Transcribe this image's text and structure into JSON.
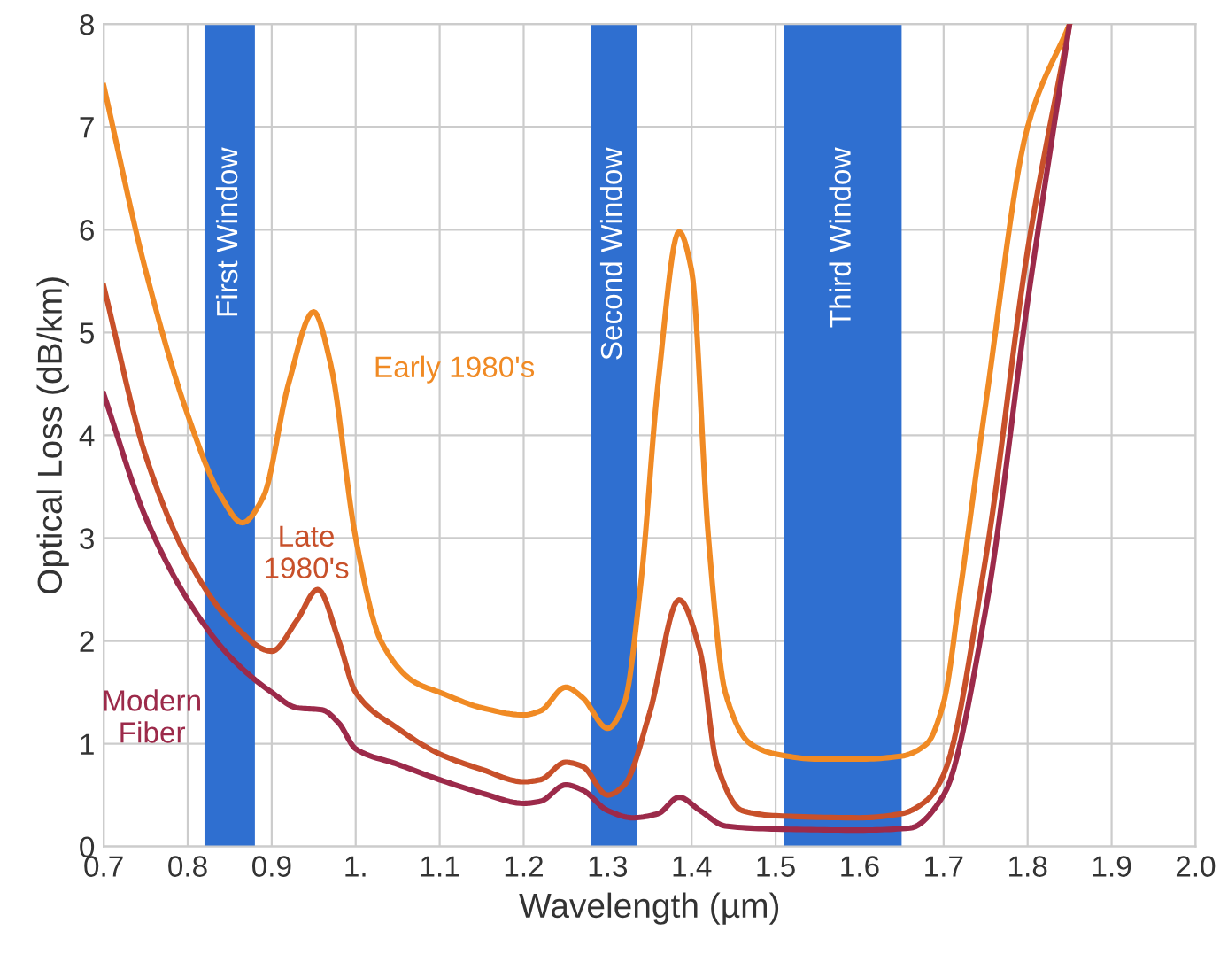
{
  "chart_data": {
    "type": "line",
    "xlabel": "Wavelength (µm)",
    "ylabel": "Optical Loss (dB/km)",
    "xlim": [
      0.7,
      2.0
    ],
    "ylim": [
      0,
      8
    ],
    "xticks": [
      0.7,
      0.8,
      0.9,
      {
        "value": 1.0,
        "label": "1."
      },
      1.1,
      1.2,
      1.3,
      1.4,
      1.5,
      1.6,
      1.7,
      1.8,
      1.9,
      {
        "value": 2.0,
        "label": "2.0"
      }
    ],
    "yticks": [
      0,
      1,
      2,
      3,
      4,
      5,
      6,
      7,
      8
    ],
    "grid": true,
    "line_style": "solid",
    "marker": "none",
    "bands": [
      {
        "axis": "x",
        "from": 0.82,
        "to": 0.88,
        "label": "First Window",
        "color": "#2f6fd0"
      },
      {
        "axis": "x",
        "from": 1.28,
        "to": 1.335,
        "label": "Second Window",
        "color": "#2f6fd0"
      },
      {
        "axis": "x",
        "from": 1.51,
        "to": 1.65,
        "label": "Third Window",
        "color": "#2f6fd0"
      }
    ],
    "series": [
      {
        "name": "Early 1980's",
        "color": "#f08a24",
        "x": [
          0.7,
          0.75,
          0.8,
          0.84,
          0.865,
          0.89,
          0.92,
          0.95,
          0.97,
          1.0,
          1.03,
          1.07,
          1.1,
          1.15,
          1.2,
          1.22,
          1.25,
          1.27,
          1.3,
          1.32,
          1.34,
          1.36,
          1.385,
          1.4,
          1.42,
          1.44,
          1.47,
          1.5,
          1.55,
          1.6,
          1.65,
          1.68,
          1.7,
          1.72,
          1.75,
          1.8,
          1.85
        ],
        "values": [
          7.4,
          5.6,
          4.2,
          3.4,
          3.15,
          3.4,
          4.5,
          5.2,
          4.7,
          3.0,
          2.0,
          1.6,
          1.5,
          1.35,
          1.28,
          1.32,
          1.55,
          1.45,
          1.15,
          1.4,
          2.6,
          4.5,
          5.98,
          5.6,
          3.0,
          1.5,
          1.0,
          0.9,
          0.85,
          0.85,
          0.88,
          1.0,
          1.4,
          2.5,
          4.3,
          7.0,
          8.0
        ]
      },
      {
        "name": "Late\n1980's",
        "color": "#c8502a",
        "x": [
          0.7,
          0.75,
          0.8,
          0.85,
          0.9,
          0.93,
          0.955,
          0.98,
          1.0,
          1.05,
          1.1,
          1.15,
          1.2,
          1.22,
          1.25,
          1.27,
          1.3,
          1.32,
          1.35,
          1.385,
          1.41,
          1.43,
          1.46,
          1.5,
          1.6,
          1.65,
          1.68,
          1.7,
          1.75,
          1.8,
          1.85
        ],
        "values": [
          5.45,
          3.8,
          2.8,
          2.2,
          1.9,
          2.2,
          2.5,
          2.0,
          1.5,
          1.15,
          0.9,
          0.75,
          0.63,
          0.65,
          0.82,
          0.78,
          0.5,
          0.6,
          1.3,
          2.4,
          1.9,
          0.8,
          0.35,
          0.3,
          0.28,
          0.32,
          0.45,
          0.7,
          2.8,
          5.8,
          8.0
        ]
      },
      {
        "name": "Modern\nFiber",
        "color": "#9c2a4a",
        "x": [
          0.7,
          0.75,
          0.8,
          0.85,
          0.9,
          0.93,
          0.96,
          0.98,
          1.0,
          1.05,
          1.1,
          1.15,
          1.2,
          1.22,
          1.25,
          1.27,
          1.3,
          1.33,
          1.36,
          1.385,
          1.41,
          1.44,
          1.5,
          1.6,
          1.66,
          1.7,
          1.75,
          1.8,
          1.85
        ],
        "values": [
          4.4,
          3.2,
          2.4,
          1.85,
          1.5,
          1.35,
          1.33,
          1.2,
          0.95,
          0.8,
          0.65,
          0.52,
          0.42,
          0.44,
          0.6,
          0.55,
          0.35,
          0.28,
          0.32,
          0.48,
          0.35,
          0.2,
          0.17,
          0.16,
          0.18,
          0.5,
          2.3,
          5.3,
          8.0
        ]
      }
    ]
  }
}
